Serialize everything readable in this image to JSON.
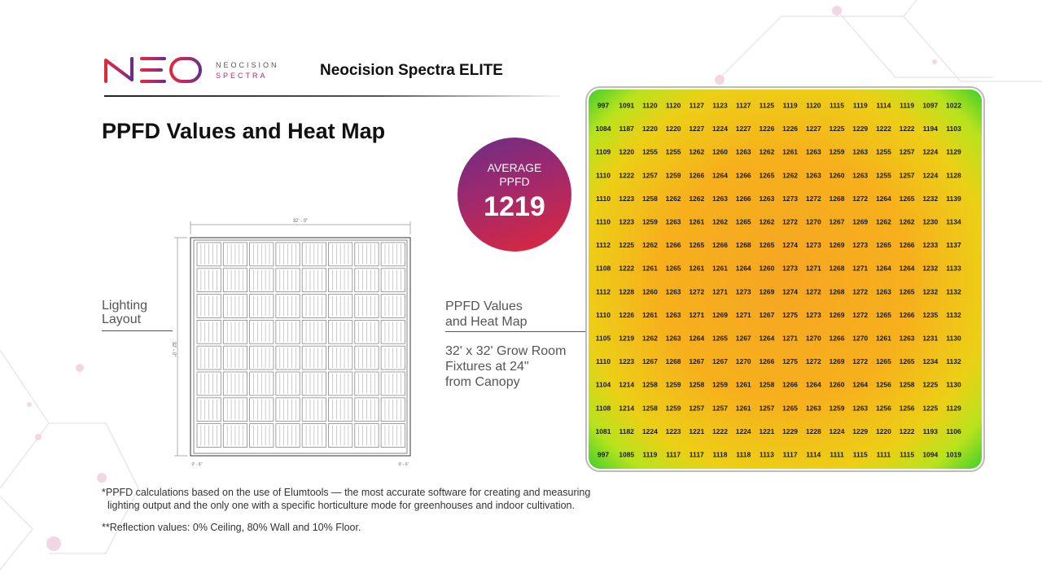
{
  "brand": {
    "logo_text": "NEO",
    "sub_line1": "NEOCISION",
    "sub_line2": "SPECTRA",
    "product_title": "Neocision Spectra ELITE"
  },
  "page_title": "PPFD Values and Heat Map",
  "average": {
    "label_line1": "AVERAGE",
    "label_line2": "PPFD",
    "value": "1219"
  },
  "lighting_layout": {
    "label_line1": "Lighting",
    "label_line2": "Layout",
    "dim_width": "32' - 0\"",
    "dim_height": "32' - 0\"",
    "dim_corner": "0' - 6\""
  },
  "heatmap_caption": {
    "line1": "PPFD Values",
    "line2": "and Heat Map"
  },
  "room_description": {
    "line1": "32' x 32' Grow Room",
    "line2": "Fixtures at 24\"",
    "line3": "from Canopy"
  },
  "footnotes": {
    "line1": "*PPFD calculations based on the use of Elumtools — the most accurate software for creating and measuring",
    "line2": "lighting output and the only one with a specific horticulture mode for greenhouses and indoor cultivation.",
    "line3": "**Reflection values: 0% Ceiling, 80% Wall and 10% Floor."
  },
  "colors": {
    "brand_purple": "#6b2d86",
    "brand_red": "#e0283a",
    "heat_high": "#f5a623",
    "heat_low": "#2ecc2e"
  },
  "chart_data": {
    "type": "heatmap",
    "title": "PPFD Values and Heat Map",
    "rows": 16,
    "cols": 16,
    "values": [
      [
        997,
        1091,
        1120,
        1120,
        1127,
        1123,
        1127,
        1125,
        1119,
        1120,
        1115,
        1119,
        1114,
        1119,
        1097,
        1022
      ],
      [
        1084,
        1187,
        1220,
        1220,
        1227,
        1224,
        1227,
        1226,
        1226,
        1227,
        1225,
        1229,
        1222,
        1222,
        1194,
        1103
      ],
      [
        1109,
        1220,
        1255,
        1255,
        1262,
        1260,
        1263,
        1262,
        1261,
        1263,
        1259,
        1263,
        1255,
        1257,
        1224,
        1129
      ],
      [
        1110,
        1222,
        1257,
        1259,
        1266,
        1264,
        1266,
        1265,
        1262,
        1263,
        1260,
        1263,
        1255,
        1257,
        1224,
        1128
      ],
      [
        1110,
        1223,
        1258,
        1262,
        1262,
        1263,
        1266,
        1263,
        1273,
        1272,
        1268,
        1272,
        1264,
        1265,
        1232,
        1139
      ],
      [
        1110,
        1223,
        1259,
        1263,
        1261,
        1262,
        1265,
        1262,
        1272,
        1270,
        1267,
        1269,
        1262,
        1262,
        1230,
        1134
      ],
      [
        1112,
        1225,
        1262,
        1266,
        1265,
        1266,
        1268,
        1265,
        1274,
        1273,
        1269,
        1273,
        1265,
        1266,
        1233,
        1137
      ],
      [
        1108,
        1222,
        1261,
        1265,
        1261,
        1261,
        1264,
        1260,
        1273,
        1271,
        1268,
        1271,
        1264,
        1264,
        1232,
        1133
      ],
      [
        1112,
        1228,
        1260,
        1263,
        1272,
        1271,
        1273,
        1269,
        1274,
        1272,
        1268,
        1272,
        1263,
        1265,
        1232,
        1132
      ],
      [
        1110,
        1226,
        1261,
        1263,
        1271,
        1269,
        1271,
        1267,
        1275,
        1273,
        1269,
        1272,
        1265,
        1266,
        1235,
        1132
      ],
      [
        1105,
        1219,
        1262,
        1263,
        1264,
        1265,
        1267,
        1264,
        1271,
        1270,
        1266,
        1270,
        1261,
        1263,
        1231,
        1130
      ],
      [
        1110,
        1223,
        1267,
        1268,
        1267,
        1267,
        1270,
        1266,
        1275,
        1272,
        1269,
        1272,
        1265,
        1265,
        1234,
        1132
      ],
      [
        1104,
        1214,
        1258,
        1259,
        1258,
        1259,
        1261,
        1258,
        1266,
        1264,
        1260,
        1264,
        1256,
        1258,
        1225,
        1130
      ],
      [
        1108,
        1214,
        1258,
        1259,
        1257,
        1257,
        1261,
        1257,
        1265,
        1263,
        1259,
        1263,
        1256,
        1256,
        1225,
        1129
      ],
      [
        1081,
        1182,
        1224,
        1223,
        1221,
        1222,
        1224,
        1221,
        1229,
        1228,
        1224,
        1229,
        1220,
        1222,
        1193,
        1106
      ],
      [
        997,
        1085,
        1119,
        1117,
        1117,
        1118,
        1118,
        1113,
        1117,
        1114,
        1111,
        1115,
        1111,
        1115,
        1094,
        1019
      ]
    ]
  }
}
